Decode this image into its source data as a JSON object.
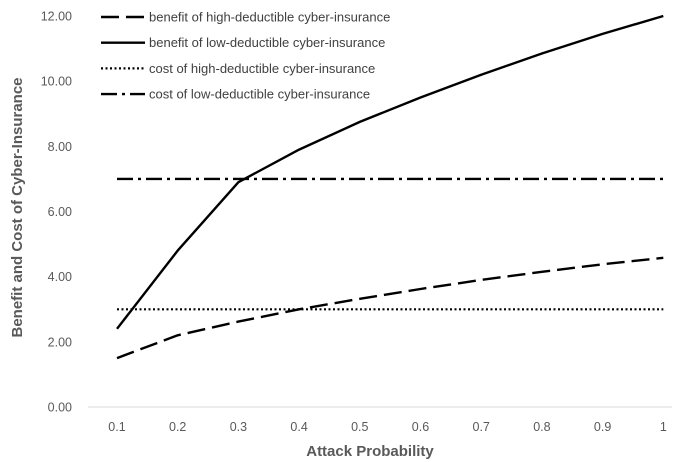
{
  "chart_data": {
    "type": "line",
    "xlabel": "Attack Probability",
    "ylabel": "Benefit and Cost of Cyber-Insurance",
    "x": [
      0.1,
      0.2,
      0.3,
      0.4,
      0.5,
      0.6,
      0.7,
      0.8,
      0.9,
      1
    ],
    "x_tick_labels": [
      "0.1",
      "0.2",
      "0.3",
      "0.4",
      "0.5",
      "0.6",
      "0.7",
      "0.8",
      "0.9",
      "1"
    ],
    "ylim": [
      0,
      12
    ],
    "y_ticks": [
      0,
      2,
      4,
      6,
      8,
      10,
      12
    ],
    "y_tick_labels": [
      "0.00",
      "2.00",
      "4.00",
      "6.00",
      "8.00",
      "10.00",
      "12.00"
    ],
    "grid": false,
    "legend_position": "top-left",
    "series": [
      {
        "name": "benefit of high-deductible cyber-insurance",
        "style": "dashed",
        "values": [
          1.5,
          2.2,
          2.62,
          3.0,
          3.32,
          3.62,
          3.9,
          4.15,
          4.38,
          4.58
        ]
      },
      {
        "name": "benefit of low-deductible cyber-insurance",
        "style": "solid",
        "values": [
          2.4,
          4.8,
          6.9,
          7.9,
          8.75,
          9.5,
          10.2,
          10.85,
          11.45,
          12.0
        ]
      },
      {
        "name": "cost of high-deductible cyber-insurance",
        "style": "dotted",
        "values": [
          3,
          3,
          3,
          3,
          3,
          3,
          3,
          3,
          3,
          3
        ]
      },
      {
        "name": "cost of low-deductible cyber-insurance",
        "style": "dash-dot",
        "values": [
          7,
          7,
          7,
          7,
          7,
          7,
          7,
          7,
          7,
          7
        ]
      }
    ],
    "line_color": "#000000",
    "axis_color": "#d9d9d9",
    "text_color": "#595959"
  }
}
